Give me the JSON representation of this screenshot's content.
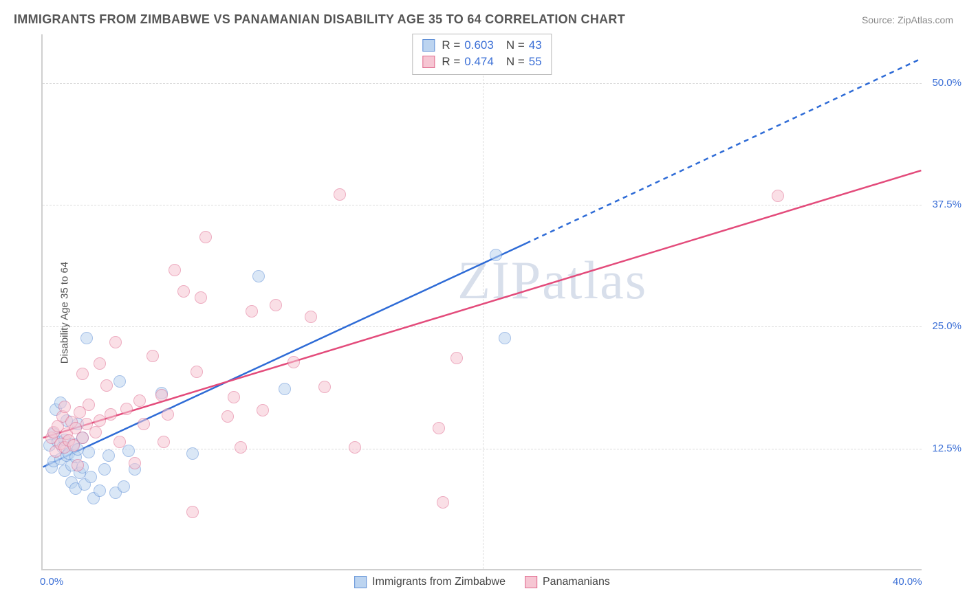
{
  "title": "IMMIGRANTS FROM ZIMBABWE VS PANAMANIAN DISABILITY AGE 35 TO 64 CORRELATION CHART",
  "source": "Source: ZipAtlas.com",
  "ylabel": "Disability Age 35 to 64",
  "watermark": "ZIPatlas",
  "chart": {
    "type": "scatter",
    "xlim": [
      0,
      40
    ],
    "ylim": [
      0,
      55
    ],
    "xtick_labels": {
      "0": "0.0%",
      "40": "40.0%"
    },
    "ytick_labels": {
      "12.5": "12.5%",
      "25": "25.0%",
      "37.5": "37.5%",
      "50": "50.0%"
    },
    "x_mid_grid": 20,
    "background_color": "#ffffff",
    "grid_color": "#dcdcdc",
    "axis_color": "#cfcfcf",
    "tick_font_color": "#3b6fd6",
    "marker_radius": 9,
    "marker_opacity": 0.55,
    "line_width": 2.5
  },
  "series": [
    {
      "id": "zimbabwe",
      "label": "Immigrants from Zimbabwe",
      "fill": "#bcd4f0",
      "stroke": "#5e8fd6",
      "line_color": "#2e6bd6",
      "R": "0.603",
      "N": "43",
      "trend": {
        "x0": 0,
        "y0": 10.5,
        "x1": 22,
        "y1": 33.5,
        "x2": 40,
        "y2": 52.5
      },
      "points": [
        [
          0.3,
          12.8
        ],
        [
          0.4,
          10.6
        ],
        [
          0.5,
          14.0
        ],
        [
          0.5,
          11.2
        ],
        [
          0.6,
          16.5
        ],
        [
          0.7,
          13.2
        ],
        [
          0.8,
          17.2
        ],
        [
          0.8,
          11.4
        ],
        [
          0.9,
          12.6
        ],
        [
          1.0,
          10.2
        ],
        [
          1.0,
          13.4
        ],
        [
          1.1,
          11.8
        ],
        [
          1.1,
          15.4
        ],
        [
          1.2,
          12.0
        ],
        [
          1.3,
          9.0
        ],
        [
          1.3,
          10.8
        ],
        [
          1.4,
          13.0
        ],
        [
          1.5,
          8.4
        ],
        [
          1.5,
          11.6
        ],
        [
          1.6,
          12.4
        ],
        [
          1.6,
          15.0
        ],
        [
          1.7,
          10.0
        ],
        [
          1.8,
          13.6
        ],
        [
          1.8,
          10.6
        ],
        [
          1.9,
          8.8
        ],
        [
          2.0,
          23.8
        ],
        [
          2.1,
          12.1
        ],
        [
          2.2,
          9.6
        ],
        [
          2.3,
          7.4
        ],
        [
          2.6,
          8.2
        ],
        [
          2.8,
          10.4
        ],
        [
          3.0,
          11.8
        ],
        [
          3.3,
          8.0
        ],
        [
          3.5,
          19.4
        ],
        [
          3.7,
          8.6
        ],
        [
          3.9,
          12.3
        ],
        [
          4.2,
          10.4
        ],
        [
          5.4,
          18.2
        ],
        [
          6.8,
          12.0
        ],
        [
          9.8,
          30.2
        ],
        [
          11.0,
          18.6
        ],
        [
          20.6,
          32.4
        ],
        [
          21.0,
          23.8
        ]
      ]
    },
    {
      "id": "panamanians",
      "label": "Panamanians",
      "fill": "#f6c6d3",
      "stroke": "#e06a8e",
      "line_color": "#e34b7b",
      "R": "0.474",
      "N": "55",
      "trend": {
        "x0": 0,
        "y0": 13.5,
        "x1": 40,
        "y1": 41.0
      },
      "points": [
        [
          0.4,
          13.6
        ],
        [
          0.5,
          14.2
        ],
        [
          0.6,
          12.2
        ],
        [
          0.7,
          14.8
        ],
        [
          0.8,
          13.0
        ],
        [
          0.9,
          15.8
        ],
        [
          1.0,
          12.6
        ],
        [
          1.0,
          16.8
        ],
        [
          1.1,
          14.0
        ],
        [
          1.2,
          13.3
        ],
        [
          1.3,
          15.2
        ],
        [
          1.4,
          12.8
        ],
        [
          1.5,
          14.6
        ],
        [
          1.6,
          10.8
        ],
        [
          1.7,
          16.2
        ],
        [
          1.8,
          13.6
        ],
        [
          1.8,
          20.2
        ],
        [
          2.0,
          15.0
        ],
        [
          2.1,
          17.0
        ],
        [
          2.4,
          14.2
        ],
        [
          2.6,
          15.4
        ],
        [
          2.6,
          21.2
        ],
        [
          2.9,
          19.0
        ],
        [
          3.1,
          16.0
        ],
        [
          3.3,
          23.4
        ],
        [
          3.5,
          13.2
        ],
        [
          3.8,
          16.6
        ],
        [
          4.2,
          11.0
        ],
        [
          4.4,
          17.4
        ],
        [
          4.6,
          15.0
        ],
        [
          5.0,
          22.0
        ],
        [
          5.4,
          18.0
        ],
        [
          5.5,
          13.2
        ],
        [
          5.7,
          16.0
        ],
        [
          6.0,
          30.8
        ],
        [
          6.4,
          28.6
        ],
        [
          6.8,
          6.0
        ],
        [
          7.0,
          20.4
        ],
        [
          7.2,
          28.0
        ],
        [
          7.4,
          34.2
        ],
        [
          8.4,
          15.8
        ],
        [
          8.7,
          17.8
        ],
        [
          9.0,
          12.6
        ],
        [
          9.5,
          26.6
        ],
        [
          10.0,
          16.4
        ],
        [
          10.6,
          27.2
        ],
        [
          11.4,
          21.4
        ],
        [
          12.2,
          26.0
        ],
        [
          12.8,
          18.8
        ],
        [
          13.5,
          38.6
        ],
        [
          14.2,
          12.6
        ],
        [
          18.0,
          14.6
        ],
        [
          18.2,
          7.0
        ],
        [
          18.8,
          21.8
        ],
        [
          33.4,
          38.4
        ]
      ]
    }
  ],
  "legend_top_title": {
    "R_label": "R =",
    "N_label": "N ="
  }
}
